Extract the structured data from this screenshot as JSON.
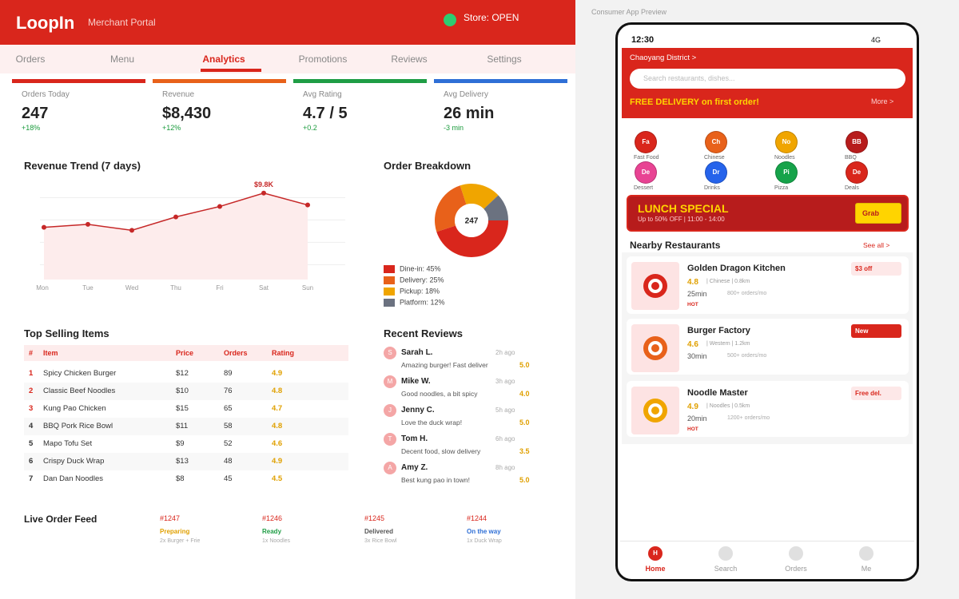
{
  "header": {
    "logo": "LoopIn",
    "subtitle": "Merchant Portal",
    "store_status": "Store: OPEN"
  },
  "tabs": [
    {
      "label": "Orders",
      "active": false
    },
    {
      "label": "Menu",
      "active": false
    },
    {
      "label": "Analytics",
      "active": true
    },
    {
      "label": "Promotions",
      "active": false
    },
    {
      "label": "Reviews",
      "active": false
    },
    {
      "label": "Settings",
      "active": false
    }
  ],
  "kpis": [
    {
      "label": "Orders Today",
      "value": "247",
      "change": "+18%",
      "color": "#d9261c"
    },
    {
      "label": "Revenue",
      "value": "$8,430",
      "change": "+12%",
      "color": "#e8611a"
    },
    {
      "label": "Avg Rating",
      "value": "4.7 / 5",
      "change": "+0.2",
      "color": "#1f9d45"
    },
    {
      "label": "Avg Delivery",
      "value": "26 min",
      "change": "-3 min",
      "color": "#2f6fd6"
    }
  ],
  "revenue_trend": {
    "type": "line",
    "title": "Revenue Trend (7 days)",
    "categories": [
      "Mon",
      "Tue",
      "Wed",
      "Thu",
      "Fri",
      "Sat",
      "Sun"
    ],
    "values": [
      7500,
      7700,
      7300,
      8200,
      8900,
      9800,
      9000
    ],
    "value_labels": [
      null,
      null,
      null,
      null,
      null,
      "$9.8K",
      null
    ],
    "color": "#c62828",
    "ylim": [
      4000,
      10000
    ],
    "yticks": [
      5000,
      6500,
      8000,
      9500
    ],
    "grid": true
  },
  "order_breakdown": {
    "type": "pie",
    "title": "Order Breakdown",
    "center_label": "247",
    "labels": [
      "Dine-in: 45%",
      "Delivery: 25%",
      "Pickup: 18%",
      "Platform: 12%"
    ],
    "values": [
      45,
      25,
      18,
      12
    ],
    "colors": [
      "#d9261c",
      "#e8611a",
      "#f0a500",
      "#6b7280"
    ]
  },
  "top_selling": {
    "title": "Top Selling Items",
    "headers": [
      "#",
      "Item",
      "Price",
      "Orders",
      "Rating"
    ],
    "rows": [
      [
        "1",
        "Spicy Chicken Burger",
        "$12",
        "89",
        "4.9"
      ],
      [
        "2",
        "Classic Beef Noodles",
        "$10",
        "76",
        "4.8"
      ],
      [
        "3",
        "Kung Pao Chicken",
        "$15",
        "65",
        "4.7"
      ],
      [
        "4",
        "BBQ Pork Rice Bowl",
        "$11",
        "58",
        "4.8"
      ],
      [
        "5",
        "Mapo Tofu Set",
        "$9",
        "52",
        "4.6"
      ],
      [
        "6",
        "Crispy Duck Wrap",
        "$13",
        "48",
        "4.9"
      ],
      [
        "7",
        "Dan Dan Noodles",
        "$8",
        "45",
        "4.5"
      ]
    ]
  },
  "reviews": {
    "title": "Recent Reviews",
    "items": [
      {
        "initial": "S",
        "name": "Sarah L.",
        "time": "2h ago",
        "text": "Amazing burger! Fast deliver",
        "rating": "5.0"
      },
      {
        "initial": "M",
        "name": "Mike W.",
        "time": "3h ago",
        "text": "Good noodles, a bit spicy",
        "rating": "4.0"
      },
      {
        "initial": "J",
        "name": "Jenny C.",
        "time": "5h ago",
        "text": "Love the duck wrap!",
        "rating": "5.0"
      },
      {
        "initial": "T",
        "name": "Tom H.",
        "time": "6h ago",
        "text": "Decent food, slow delivery",
        "rating": "3.5"
      },
      {
        "initial": "A",
        "name": "Amy Z.",
        "time": "8h ago",
        "text": "Best kung pao in town!",
        "rating": "5.0"
      }
    ]
  },
  "live_feed": {
    "title": "Live Order Feed",
    "orders": [
      {
        "id": "#1247",
        "status": "Preparing",
        "color": "#e0a000",
        "items": "2x Burger + Frie"
      },
      {
        "id": "#1246",
        "status": "Ready",
        "color": "#1f9d45",
        "items": "1x Noodles"
      },
      {
        "id": "#1245",
        "status": "Delivered",
        "color": "#555555",
        "items": "3x Rice Bowl"
      },
      {
        "id": "#1244",
        "status": "On the way",
        "color": "#2f6fd6",
        "items": "1x Duck Wrap"
      }
    ]
  },
  "preview": {
    "label": "Consumer App Preview",
    "time": "12:30",
    "network": "4G",
    "location": "Chaoyang District >",
    "search_placeholder": "Search restaurants, dishes...",
    "promo": "FREE DELIVERY on first order!",
    "more": "More >",
    "categories": [
      {
        "abbr": "Fa",
        "name": "Fast Food",
        "color": "#d9261c"
      },
      {
        "abbr": "Ch",
        "name": "Chinese",
        "color": "#e8611a"
      },
      {
        "abbr": "No",
        "name": "Noodles",
        "color": "#f0a500"
      },
      {
        "abbr": "BB",
        "name": "BBQ",
        "color": "#b71c1c"
      },
      {
        "abbr": "De",
        "name": "Dessert",
        "color": "#e84393"
      },
      {
        "abbr": "Dr",
        "name": "Drinks",
        "color": "#2563eb"
      },
      {
        "abbr": "Pi",
        "name": "Pizza",
        "color": "#16a34a"
      },
      {
        "abbr": "De",
        "name": "Deals",
        "color": "#d9261c"
      }
    ],
    "banner": {
      "title": "LUNCH SPECIAL",
      "subtitle": "Up to 50% OFF | 11:00 - 14:00",
      "button": "Grab"
    },
    "section_title": "Nearby Restaurants",
    "see_all": "See all >",
    "restaurants": [
      {
        "name": "Golden Dragon Kitchen",
        "rating": "4.8",
        "details": "| Chinese | 0.8km",
        "time": "25min",
        "orders": "800+ orders/mo",
        "tag": "HOT",
        "badge": "$3 off",
        "badge_filled": false,
        "color": "#d9261c"
      },
      {
        "name": "Burger Factory",
        "rating": "4.6",
        "details": "| Western | 1.2km",
        "time": "30min",
        "orders": "500+ orders/mo",
        "badge": "New",
        "badge_filled": true,
        "color": "#e8611a"
      },
      {
        "name": "Noodle Master",
        "rating": "4.9",
        "details": "| Noodles | 0.5km",
        "time": "20min",
        "orders": "1200+ orders/mo",
        "tag": "HOT",
        "badge": "Free del.",
        "badge_filled": false,
        "color": "#f0a500"
      }
    ],
    "nav": [
      {
        "icon": "H",
        "label": "Home",
        "active": true
      },
      {
        "label": "Search",
        "active": false
      },
      {
        "label": "Orders",
        "active": false
      },
      {
        "label": "Me",
        "active": false
      }
    ]
  }
}
